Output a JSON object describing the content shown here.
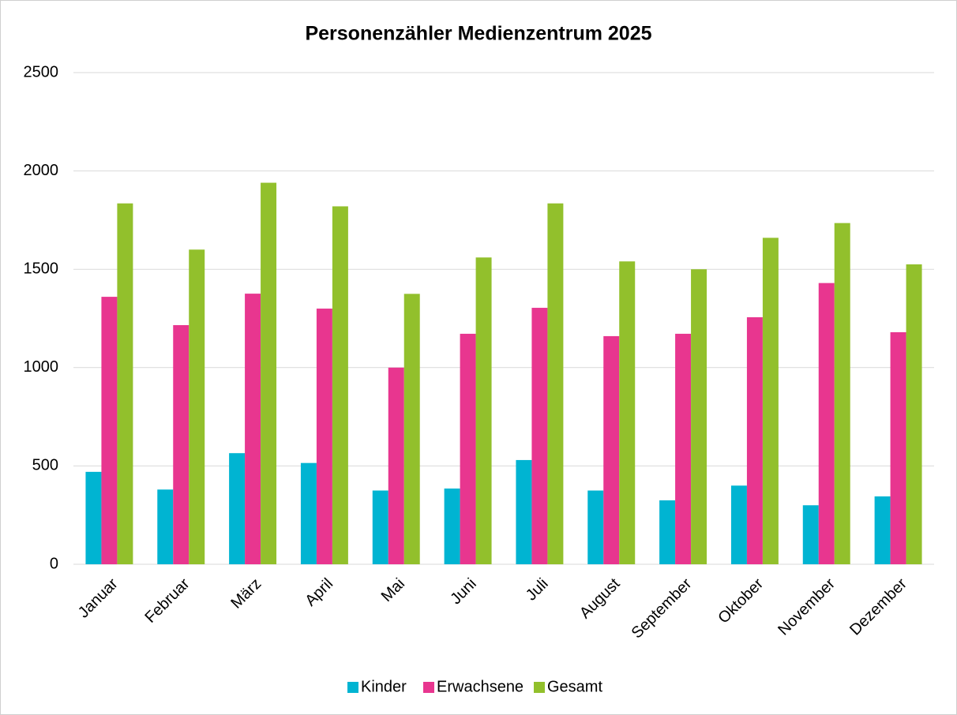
{
  "chart_data": {
    "type": "bar",
    "title": "Personenzähler Medienzentrum 2025",
    "categories": [
      "Januar",
      "Februar",
      "März",
      "April",
      "Mai",
      "Juni",
      "Juli",
      "August",
      "September",
      "Oktober",
      "November",
      "Dezember"
    ],
    "series": [
      {
        "name": "Kinder",
        "color": "#00b4d2",
        "values": [
          470,
          380,
          565,
          515,
          375,
          385,
          530,
          375,
          325,
          400,
          300,
          345
        ]
      },
      {
        "name": "Erwachsene",
        "color": "#e8368f",
        "values": [
          1360,
          1216,
          1376,
          1300,
          1000,
          1172,
          1304,
          1160,
          1172,
          1256,
          1430,
          1180
        ]
      },
      {
        "name": "Gesamt",
        "color": "#92c02c",
        "values": [
          1835,
          1600,
          1940,
          1820,
          1375,
          1560,
          1835,
          1540,
          1500,
          1660,
          1735,
          1525
        ]
      }
    ],
    "ylim": [
      0,
      2500
    ],
    "yticks": [
      0,
      500,
      1000,
      1500,
      2000,
      2500
    ],
    "grid": true,
    "legend": "bottom"
  }
}
